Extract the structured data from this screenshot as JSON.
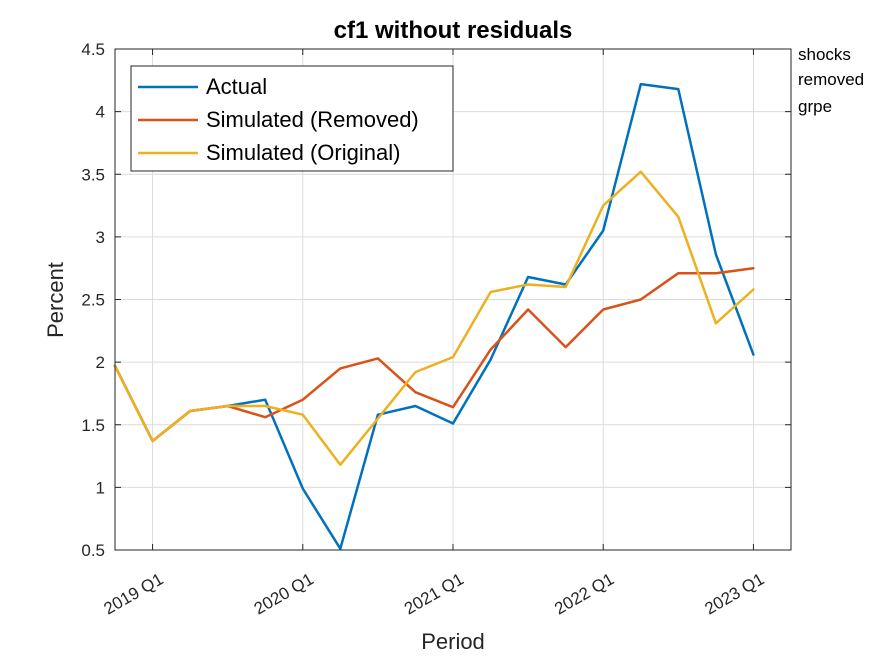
{
  "chart_data": {
    "type": "line",
    "title": "cf1 without residuals",
    "xlabel": "Period",
    "ylabel": "Percent",
    "ylim": [
      0.5,
      4.5
    ],
    "xlim": [
      0,
      18
    ],
    "grid": true,
    "legend_position": "top-left",
    "y_ticks": [
      "0.5",
      "1",
      "1.5",
      "2",
      "2.5",
      "3",
      "3.5",
      "4",
      "4.5"
    ],
    "x_ticks": [
      {
        "x": 1,
        "label": "2019 Q1"
      },
      {
        "x": 5,
        "label": "2020 Q1"
      },
      {
        "x": 9,
        "label": "2021 Q1"
      },
      {
        "x": 13,
        "label": "2022 Q1"
      },
      {
        "x": 17,
        "label": "2023 Q1"
      }
    ],
    "x": [
      0,
      1,
      2,
      3,
      4,
      5,
      6,
      7,
      8,
      9,
      10,
      11,
      12,
      13,
      14,
      15,
      16,
      17,
      18
    ],
    "series": [
      {
        "name": "Actual",
        "color": "#0072BD",
        "values": [
          1.97,
          1.37,
          1.61,
          1.65,
          1.7,
          0.99,
          0.51,
          1.58,
          1.65,
          1.51,
          2.02,
          2.68,
          2.62,
          3.05,
          4.22,
          4.18,
          2.86,
          2.06,
          null
        ]
      },
      {
        "name": "Simulated (Removed)",
        "color": "#D95319",
        "values": [
          1.97,
          1.37,
          1.61,
          1.65,
          1.56,
          1.7,
          1.95,
          2.03,
          1.76,
          1.64,
          2.1,
          2.42,
          2.12,
          2.42,
          2.5,
          2.71,
          2.71,
          2.75,
          null
        ]
      },
      {
        "name": "Simulated (Original)",
        "color": "#EDB120",
        "values": [
          1.97,
          1.37,
          1.61,
          1.65,
          1.65,
          1.58,
          1.18,
          1.55,
          1.92,
          2.04,
          2.56,
          2.62,
          2.6,
          3.25,
          3.52,
          3.16,
          2.31,
          2.58,
          null
        ]
      }
    ]
  },
  "annotation": {
    "lines": [
      "shocks",
      "removed",
      "grpe"
    ]
  }
}
